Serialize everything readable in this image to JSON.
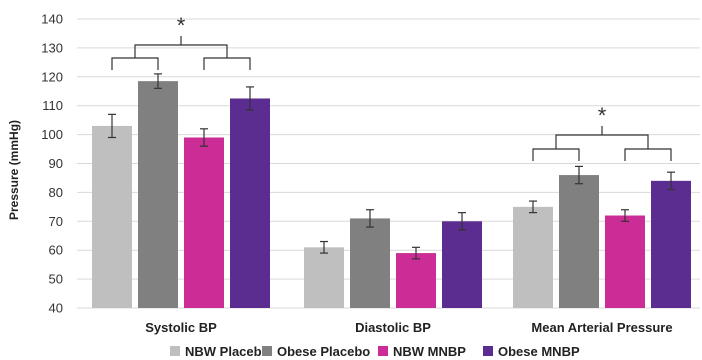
{
  "chart_data": {
    "type": "bar",
    "ylabel": "Pressure (mmHg)",
    "ylim": [
      40,
      140
    ],
    "yticks": [
      40,
      50,
      60,
      70,
      80,
      90,
      100,
      110,
      120,
      130,
      140
    ],
    "grid": true,
    "legend_position": "bottom",
    "categories": [
      "Systolic BP",
      "Diastolic BP",
      "Mean Arterial Pressure"
    ],
    "series": [
      {
        "name": "NBW Placebo",
        "color": "#bfbfbf",
        "values": [
          103,
          61,
          75
        ],
        "errors": [
          4,
          2,
          2
        ]
      },
      {
        "name": "Obese Placebo",
        "color": "#808080",
        "values": [
          118.5,
          71,
          86
        ],
        "errors": [
          2.5,
          3,
          3
        ]
      },
      {
        "name": "NBW MNBP",
        "color": "#cc2c96",
        "values": [
          99,
          59,
          72
        ],
        "errors": [
          3,
          2,
          2
        ]
      },
      {
        "name": "Obese MNBP",
        "color": "#5c2d91",
        "values": [
          112.5,
          70,
          84
        ],
        "errors": [
          4,
          3,
          3
        ]
      }
    ],
    "annotations": [
      {
        "text": "*",
        "category": "Systolic BP"
      },
      {
        "text": "*",
        "category": "Mean Arterial Pressure"
      }
    ]
  }
}
